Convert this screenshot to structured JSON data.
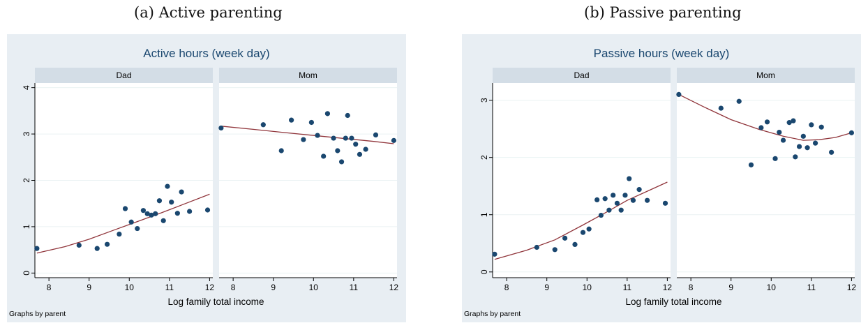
{
  "captions": {
    "a": "(a) Active parenting",
    "b": "(b) Passive parenting"
  },
  "colors": {
    "background": "#e8eef3",
    "panel_header": "#d3dde6",
    "marker": "#1a476f",
    "fit_line": "#90353b",
    "title": "#1a476f"
  },
  "chart_data": [
    {
      "type": "scatter",
      "title": "Active hours (week day)",
      "xlabel": "Log family total income",
      "ylabel": "",
      "note": "Graphs by parent",
      "xlim": [
        7.65,
        12.08
      ],
      "ylim": [
        -0.1,
        4.1
      ],
      "xticks": [
        8,
        9,
        10,
        11,
        12
      ],
      "yticks": [
        0,
        1,
        2,
        3,
        4
      ],
      "grid": true,
      "panels": [
        {
          "label": "Dad",
          "points": [
            [
              7.7,
              0.53
            ],
            [
              8.75,
              0.6
            ],
            [
              9.2,
              0.53
            ],
            [
              9.45,
              0.62
            ],
            [
              9.75,
              0.84
            ],
            [
              9.9,
              1.39
            ],
            [
              10.05,
              1.1
            ],
            [
              10.2,
              0.96
            ],
            [
              10.35,
              1.35
            ],
            [
              10.45,
              1.28
            ],
            [
              10.55,
              1.25
            ],
            [
              10.65,
              1.28
            ],
            [
              10.75,
              1.56
            ],
            [
              10.85,
              1.13
            ],
            [
              10.95,
              1.87
            ],
            [
              11.05,
              1.53
            ],
            [
              11.2,
              1.29
            ],
            [
              11.3,
              1.75
            ],
            [
              11.5,
              1.33
            ],
            [
              11.95,
              1.36
            ]
          ],
          "fit": [
            [
              7.7,
              0.43
            ],
            [
              8.4,
              0.57
            ],
            [
              9.0,
              0.73
            ],
            [
              9.6,
              0.92
            ],
            [
              10.2,
              1.11
            ],
            [
              10.8,
              1.3
            ],
            [
              11.4,
              1.5
            ],
            [
              12.0,
              1.7
            ]
          ]
        },
        {
          "label": "Mom",
          "points": [
            [
              7.7,
              3.13
            ],
            [
              8.75,
              3.2
            ],
            [
              9.2,
              2.64
            ],
            [
              9.45,
              3.3
            ],
            [
              9.75,
              2.88
            ],
            [
              9.95,
              3.25
            ],
            [
              10.1,
              2.97
            ],
            [
              10.25,
              2.52
            ],
            [
              10.35,
              3.44
            ],
            [
              10.5,
              2.91
            ],
            [
              10.6,
              2.64
            ],
            [
              10.7,
              2.4
            ],
            [
              10.8,
              2.91
            ],
            [
              10.85,
              3.4
            ],
            [
              10.95,
              2.91
            ],
            [
              11.05,
              2.78
            ],
            [
              11.15,
              2.56
            ],
            [
              11.3,
              2.67
            ],
            [
              11.55,
              2.98
            ],
            [
              12.0,
              2.86
            ]
          ],
          "fit": [
            [
              7.7,
              3.17
            ],
            [
              8.5,
              3.1
            ],
            [
              9.3,
              3.03
            ],
            [
              10.1,
              2.96
            ],
            [
              10.8,
              2.9
            ],
            [
              11.5,
              2.84
            ],
            [
              12.0,
              2.79
            ]
          ]
        }
      ]
    },
    {
      "type": "scatter",
      "title": "Passive hours (week day)",
      "xlabel": "Log family total income",
      "ylabel": "",
      "note": "Graphs by parent",
      "xlim": [
        7.65,
        12.08
      ],
      "ylim": [
        -0.1,
        3.3
      ],
      "xticks": [
        8,
        9,
        10,
        11,
        12
      ],
      "yticks": [
        0,
        1,
        2,
        3
      ],
      "grid": true,
      "panels": [
        {
          "label": "Dad",
          "points": [
            [
              7.7,
              0.31
            ],
            [
              8.75,
              0.43
            ],
            [
              9.2,
              0.39
            ],
            [
              9.45,
              0.59
            ],
            [
              9.7,
              0.48
            ],
            [
              9.9,
              0.69
            ],
            [
              10.05,
              0.75
            ],
            [
              10.25,
              1.26
            ],
            [
              10.35,
              0.99
            ],
            [
              10.45,
              1.28
            ],
            [
              10.55,
              1.08
            ],
            [
              10.65,
              1.34
            ],
            [
              10.75,
              1.2
            ],
            [
              10.85,
              1.08
            ],
            [
              10.95,
              1.34
            ],
            [
              11.05,
              1.63
            ],
            [
              11.15,
              1.25
            ],
            [
              11.3,
              1.44
            ],
            [
              11.5,
              1.25
            ],
            [
              11.95,
              1.2
            ]
          ],
          "fit": [
            [
              7.7,
              0.22
            ],
            [
              8.5,
              0.38
            ],
            [
              9.2,
              0.56
            ],
            [
              9.9,
              0.82
            ],
            [
              10.5,
              1.05
            ],
            [
              11.0,
              1.25
            ],
            [
              11.5,
              1.41
            ],
            [
              12.0,
              1.57
            ]
          ]
        },
        {
          "label": "Mom",
          "points": [
            [
              7.7,
              3.1
            ],
            [
              8.75,
              2.86
            ],
            [
              9.2,
              2.98
            ],
            [
              9.5,
              1.87
            ],
            [
              9.75,
              2.52
            ],
            [
              9.9,
              2.62
            ],
            [
              10.1,
              1.98
            ],
            [
              10.2,
              2.44
            ],
            [
              10.3,
              2.3
            ],
            [
              10.45,
              2.61
            ],
            [
              10.55,
              2.64
            ],
            [
              10.6,
              2.01
            ],
            [
              10.7,
              2.19
            ],
            [
              10.8,
              2.37
            ],
            [
              10.9,
              2.17
            ],
            [
              11.0,
              2.57
            ],
            [
              11.1,
              2.25
            ],
            [
              11.25,
              2.53
            ],
            [
              11.5,
              2.09
            ],
            [
              12.0,
              2.43
            ]
          ],
          "fit": [
            [
              7.7,
              3.1
            ],
            [
              8.3,
              2.89
            ],
            [
              9.0,
              2.66
            ],
            [
              9.7,
              2.49
            ],
            [
              10.3,
              2.37
            ],
            [
              10.8,
              2.3
            ],
            [
              11.2,
              2.31
            ],
            [
              11.6,
              2.35
            ],
            [
              12.0,
              2.43
            ]
          ]
        }
      ]
    }
  ]
}
